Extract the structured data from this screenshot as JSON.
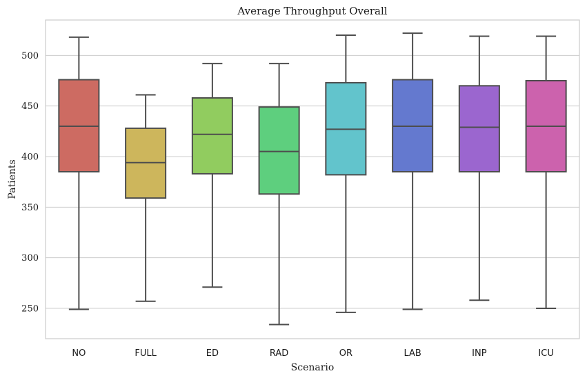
{
  "chart_data": {
    "type": "box",
    "title": "Average Throughput Overall",
    "xlabel": "Scenario",
    "ylabel": "Patients",
    "ylim": [
      220,
      535
    ],
    "yticks": [
      250,
      300,
      350,
      400,
      450,
      500
    ],
    "grid": "horizontal",
    "categories": [
      "NO",
      "FULL",
      "ED",
      "RAD",
      "OR",
      "LAB",
      "INP",
      "ICU"
    ],
    "boxes": [
      {
        "category": "NO",
        "min": 249,
        "q1": 385,
        "median": 430,
        "q3": 476,
        "max": 518,
        "color": "#cd6b62"
      },
      {
        "category": "FULL",
        "min": 257,
        "q1": 359,
        "median": 394,
        "q3": 428,
        "max": 461,
        "color": "#cdb65c"
      },
      {
        "category": "ED",
        "min": 271,
        "q1": 383,
        "median": 422,
        "q3": 458,
        "max": 492,
        "color": "#91cc5f"
      },
      {
        "category": "RAD",
        "min": 234,
        "q1": 363,
        "median": 405,
        "q3": 449,
        "max": 492,
        "color": "#5ecf7e"
      },
      {
        "category": "OR",
        "min": 246,
        "q1": 382,
        "median": 427,
        "q3": 473,
        "max": 520,
        "color": "#62c4cc"
      },
      {
        "category": "LAB",
        "min": 249,
        "q1": 385,
        "median": 430,
        "q3": 476,
        "max": 522,
        "color": "#6479cf"
      },
      {
        "category": "INP",
        "min": 258,
        "q1": 385,
        "median": 429,
        "q3": 470,
        "max": 519,
        "color": "#9b66cf"
      },
      {
        "category": "ICU",
        "min": 250,
        "q1": 385,
        "median": 430,
        "q3": 475,
        "max": 519,
        "color": "#cc62ad"
      }
    ],
    "line_color": "#4d4d4d",
    "grid_color": "#cccccc",
    "frame_color": "#cccccc"
  }
}
